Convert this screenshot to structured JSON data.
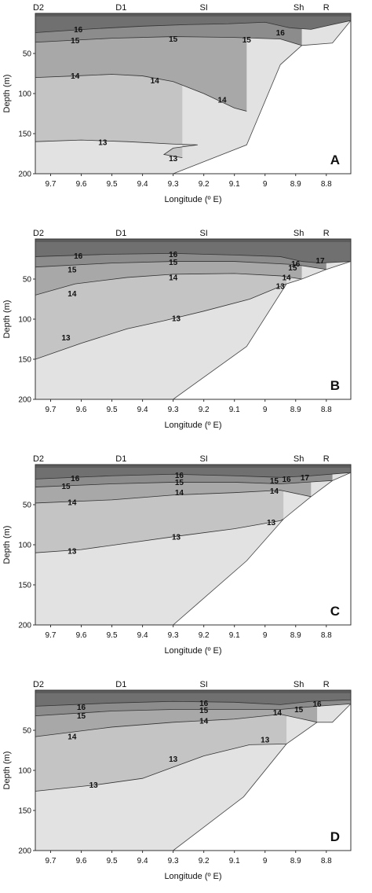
{
  "chart_data": [
    {
      "type": "heatmap",
      "panel_label": "A",
      "station_labels": [
        {
          "name": "D2",
          "x": 9.75
        },
        {
          "name": "D1",
          "x": 9.47
        },
        {
          "name": "SI",
          "x": 9.2
        },
        {
          "name": "Sh",
          "x": 8.89
        },
        {
          "name": "R",
          "x": 8.8
        }
      ],
      "xlabel": "Longitude (º E)",
      "ylabel": "Depth (m)",
      "xlim": [
        9.75,
        8.72
      ],
      "ylim": [
        0,
        200
      ],
      "xticks": [
        9.7,
        9.6,
        9.5,
        9.4,
        9.3,
        9.2,
        9.1,
        9,
        8.9,
        8.8
      ],
      "yticks": [
        50,
        100,
        150,
        200
      ],
      "bathymetry": [
        [
          9.3,
          200
        ],
        [
          9.06,
          164
        ],
        [
          8.95,
          64
        ],
        [
          8.88,
          40
        ],
        [
          8.78,
          37
        ],
        [
          8.72,
          9
        ]
      ],
      "contours": [
        {
          "level": 16,
          "label": "16",
          "points": [
            [
              9.75,
              24
            ],
            [
              9.55,
              19
            ],
            [
              9.4,
              16
            ],
            [
              9.25,
              14
            ],
            [
              9.12,
              13
            ],
            [
              9.0,
              11
            ],
            [
              8.92,
              18
            ],
            [
              8.85,
              20
            ],
            [
              8.78,
              14
            ],
            [
              8.72,
              9
            ]
          ]
        },
        {
          "level": 15,
          "label": "15",
          "points": [
            [
              9.75,
              36
            ],
            [
              9.5,
              31
            ],
            [
              9.3,
              29
            ],
            [
              9.1,
              30
            ],
            [
              8.95,
              32
            ],
            [
              8.88,
              40
            ]
          ]
        },
        {
          "level": 14,
          "label": "14",
          "points": [
            [
              9.75,
              80
            ],
            [
              9.62,
              78
            ],
            [
              9.5,
              76
            ],
            [
              9.4,
              78
            ],
            [
              9.3,
              85
            ],
            [
              9.2,
              100
            ],
            [
              9.1,
              118
            ],
            [
              9.06,
              122
            ]
          ]
        },
        {
          "level": 13,
          "label": "13",
          "points": [
            [
              9.75,
              160
            ],
            [
              9.6,
              158
            ],
            [
              9.45,
              160
            ],
            [
              9.3,
              163
            ],
            [
              9.22,
              164
            ],
            [
              9.3,
              168
            ],
            [
              9.33,
              176
            ],
            [
              9.27,
              180
            ]
          ]
        }
      ],
      "contour_labels": [
        {
          "text": "16",
          "x": 9.61,
          "y": 20
        },
        {
          "text": "16",
          "x": 8.95,
          "y": 24
        },
        {
          "text": "15",
          "x": 9.62,
          "y": 34
        },
        {
          "text": "15",
          "x": 9.3,
          "y": 32
        },
        {
          "text": "15",
          "x": 9.06,
          "y": 33
        },
        {
          "text": "14",
          "x": 9.62,
          "y": 78
        },
        {
          "text": "14",
          "x": 9.36,
          "y": 84
        },
        {
          "text": "14",
          "x": 9.14,
          "y": 108
        },
        {
          "text": "13",
          "x": 9.53,
          "y": 161
        },
        {
          "text": "13",
          "x": 9.3,
          "y": 181
        }
      ],
      "colors": {
        "t16": "#707070",
        "t15": "#8c8c8c",
        "t14": "#a8a8a8",
        "t13": "#c4c4c4",
        "t12": "#e2e2e2",
        "land": "#ffffff"
      }
    },
    {
      "type": "heatmap",
      "panel_label": "B",
      "station_labels": [
        {
          "name": "D2",
          "x": 9.75
        },
        {
          "name": "D1",
          "x": 9.47
        },
        {
          "name": "SI",
          "x": 9.2
        },
        {
          "name": "Sh",
          "x": 8.89
        },
        {
          "name": "R",
          "x": 8.8
        }
      ],
      "xlabel": "Longitude (º E)",
      "ylabel": "Depth (m)",
      "xlim": [
        9.75,
        8.72
      ],
      "ylim": [
        0,
        200
      ],
      "xticks": [
        9.7,
        9.6,
        9.5,
        9.4,
        9.3,
        9.2,
        9.1,
        9,
        8.9,
        8.8
      ],
      "yticks": [
        50,
        100,
        150,
        200
      ],
      "bathymetry": [
        [
          9.3,
          200
        ],
        [
          9.06,
          134
        ],
        [
          8.93,
          56
        ],
        [
          8.88,
          50
        ],
        [
          8.8,
          38
        ],
        [
          8.72,
          28
        ]
      ],
      "contours": [
        {
          "level": 16,
          "label": "16",
          "points": [
            [
              9.75,
              22
            ],
            [
              9.5,
              19
            ],
            [
              9.3,
              18
            ],
            [
              9.1,
              20
            ],
            [
              8.95,
              22
            ],
            [
              8.88,
              28
            ],
            [
              8.82,
              30
            ],
            [
              8.72,
              28
            ]
          ]
        },
        {
          "level": 15,
          "label": "15",
          "points": [
            [
              9.75,
              35
            ],
            [
              9.5,
              30
            ],
            [
              9.3,
              28
            ],
            [
              9.1,
              28
            ],
            [
              8.9,
              32
            ],
            [
              8.8,
              38
            ]
          ]
        },
        {
          "level": 14,
          "label": "14",
          "points": [
            [
              9.75,
              70
            ],
            [
              9.62,
              56
            ],
            [
              9.45,
              48
            ],
            [
              9.3,
              44
            ],
            [
              9.1,
              43
            ],
            [
              8.95,
              46
            ],
            [
              8.88,
              50
            ]
          ]
        },
        {
          "level": 13,
          "label": "13",
          "points": [
            [
              9.75,
              150
            ],
            [
              9.6,
              130
            ],
            [
              9.45,
              112
            ],
            [
              9.33,
              102
            ],
            [
              9.2,
              90
            ],
            [
              9.05,
              75
            ],
            [
              8.93,
              56
            ]
          ]
        }
      ],
      "contour_labels": [
        {
          "text": "16",
          "x": 9.61,
          "y": 21
        },
        {
          "text": "16",
          "x": 9.3,
          "y": 19
        },
        {
          "text": "16",
          "x": 8.9,
          "y": 31
        },
        {
          "text": "17",
          "x": 8.82,
          "y": 27
        },
        {
          "text": "15",
          "x": 9.63,
          "y": 38
        },
        {
          "text": "15",
          "x": 9.3,
          "y": 29
        },
        {
          "text": "15",
          "x": 8.91,
          "y": 36
        },
        {
          "text": "14",
          "x": 9.63,
          "y": 68
        },
        {
          "text": "14",
          "x": 9.3,
          "y": 48
        },
        {
          "text": "14",
          "x": 8.93,
          "y": 48
        },
        {
          "text": "13",
          "x": 9.65,
          "y": 123
        },
        {
          "text": "13",
          "x": 9.29,
          "y": 99
        },
        {
          "text": "13",
          "x": 8.95,
          "y": 59
        }
      ],
      "colors": {
        "t16": "#707070",
        "t15": "#8c8c8c",
        "t14": "#a8a8a8",
        "t13": "#c4c4c4",
        "t12": "#e2e2e2",
        "land": "#ffffff"
      }
    },
    {
      "type": "heatmap",
      "panel_label": "C",
      "station_labels": [
        {
          "name": "D2",
          "x": 9.75
        },
        {
          "name": "D1",
          "x": 9.47
        },
        {
          "name": "SI",
          "x": 9.2
        },
        {
          "name": "Sh",
          "x": 8.89
        },
        {
          "name": "R",
          "x": 8.8
        }
      ],
      "xlabel": "Longitude (º E)",
      "ylabel": "Depth (m)",
      "xlim": [
        9.75,
        8.72
      ],
      "ylim": [
        0,
        200
      ],
      "xticks": [
        9.7,
        9.6,
        9.5,
        9.4,
        9.3,
        9.2,
        9.1,
        9,
        8.9,
        8.8
      ],
      "yticks": [
        50,
        100,
        150,
        200
      ],
      "bathymetry": [
        [
          9.3,
          200
        ],
        [
          9.06,
          120
        ],
        [
          8.94,
          68
        ],
        [
          8.85,
          40
        ],
        [
          8.78,
          20
        ],
        [
          8.72,
          10
        ]
      ],
      "contours": [
        {
          "level": 16,
          "label": "16",
          "points": [
            [
              9.75,
              18
            ],
            [
              9.5,
              14
            ],
            [
              9.3,
              12
            ],
            [
              9.1,
              14
            ],
            [
              8.95,
              16
            ],
            [
              8.85,
              14
            ],
            [
              8.72,
              10
            ]
          ]
        },
        {
          "level": 15,
          "label": "15",
          "points": [
            [
              9.75,
              28
            ],
            [
              9.5,
              24
            ],
            [
              9.3,
              22
            ],
            [
              9.1,
              22
            ],
            [
              8.95,
              24
            ],
            [
              8.78,
              20
            ]
          ]
        },
        {
          "level": 14,
          "label": "14",
          "points": [
            [
              9.75,
              48
            ],
            [
              9.5,
              44
            ],
            [
              9.3,
              38
            ],
            [
              9.1,
              35
            ],
            [
              8.95,
              32
            ],
            [
              8.85,
              40
            ]
          ]
        },
        {
          "level": 13,
          "label": "13",
          "points": [
            [
              9.75,
              110
            ],
            [
              9.6,
              106
            ],
            [
              9.45,
              98
            ],
            [
              9.3,
              90
            ],
            [
              9.1,
              80
            ],
            [
              8.95,
              70
            ],
            [
              8.94,
              68
            ]
          ]
        }
      ],
      "contour_labels": [
        {
          "text": "16",
          "x": 9.62,
          "y": 17
        },
        {
          "text": "16",
          "x": 9.28,
          "y": 13
        },
        {
          "text": "16",
          "x": 8.93,
          "y": 18
        },
        {
          "text": "17",
          "x": 8.87,
          "y": 16
        },
        {
          "text": "15",
          "x": 9.65,
          "y": 27
        },
        {
          "text": "15",
          "x": 9.28,
          "y": 22
        },
        {
          "text": "15",
          "x": 8.97,
          "y": 20
        },
        {
          "text": "14",
          "x": 9.63,
          "y": 47
        },
        {
          "text": "14",
          "x": 9.28,
          "y": 35
        },
        {
          "text": "14",
          "x": 8.97,
          "y": 33
        },
        {
          "text": "13",
          "x": 9.63,
          "y": 108
        },
        {
          "text": "13",
          "x": 9.29,
          "y": 90
        },
        {
          "text": "13",
          "x": 8.98,
          "y": 72
        }
      ],
      "colors": {
        "t16": "#707070",
        "t15": "#8c8c8c",
        "t14": "#a8a8a8",
        "t13": "#c4c4c4",
        "t12": "#e2e2e2",
        "land": "#ffffff"
      }
    },
    {
      "type": "heatmap",
      "panel_label": "D",
      "station_labels": [
        {
          "name": "D2",
          "x": 9.75
        },
        {
          "name": "D1",
          "x": 9.47
        },
        {
          "name": "SI",
          "x": 9.2
        },
        {
          "name": "Sh",
          "x": 8.89
        },
        {
          "name": "R",
          "x": 8.8
        }
      ],
      "xlabel": "Longitude (º E)",
      "ylabel": "Depth (m)",
      "xlim": [
        9.75,
        8.72
      ],
      "ylim": [
        0,
        200
      ],
      "xticks": [
        9.7,
        9.6,
        9.5,
        9.4,
        9.3,
        9.2,
        9.1,
        9,
        8.9,
        8.8
      ],
      "yticks": [
        50,
        100,
        150,
        200
      ],
      "bathymetry": [
        [
          9.3,
          200
        ],
        [
          9.07,
          133
        ],
        [
          8.93,
          67
        ],
        [
          8.83,
          40
        ],
        [
          8.78,
          40
        ],
        [
          8.72,
          17
        ]
      ],
      "contours": [
        {
          "level": 16,
          "label": "16",
          "points": [
            [
              9.75,
              20
            ],
            [
              9.5,
              16
            ],
            [
              9.3,
              14
            ],
            [
              9.1,
              15
            ],
            [
              8.95,
              18
            ],
            [
              8.85,
              14
            ],
            [
              8.72,
              12
            ]
          ]
        },
        {
          "level": 15,
          "label": "15",
          "points": [
            [
              9.75,
              32
            ],
            [
              9.5,
              26
            ],
            [
              9.3,
              24
            ],
            [
              9.1,
              24
            ],
            [
              8.95,
              24
            ],
            [
              8.83,
              20
            ],
            [
              8.72,
              17
            ]
          ]
        },
        {
          "level": 14,
          "label": "14",
          "points": [
            [
              9.75,
              58
            ],
            [
              9.5,
              46
            ],
            [
              9.3,
              40
            ],
            [
              9.1,
              36
            ],
            [
              8.95,
              30
            ],
            [
              8.83,
              40
            ]
          ]
        },
        {
          "level": 13,
          "label": "13",
          "points": [
            [
              9.75,
              126
            ],
            [
              9.55,
              118
            ],
            [
              9.4,
              110
            ],
            [
              9.3,
              96
            ],
            [
              9.2,
              82
            ],
            [
              9.05,
              68
            ],
            [
              8.93,
              67
            ]
          ]
        }
      ],
      "contour_labels": [
        {
          "text": "16",
          "x": 9.6,
          "y": 21
        },
        {
          "text": "16",
          "x": 9.2,
          "y": 16
        },
        {
          "text": "16",
          "x": 8.83,
          "y": 17
        },
        {
          "text": "15",
          "x": 9.6,
          "y": 32
        },
        {
          "text": "15",
          "x": 9.2,
          "y": 25
        },
        {
          "text": "15",
          "x": 8.89,
          "y": 24
        },
        {
          "text": "14",
          "x": 9.63,
          "y": 58
        },
        {
          "text": "14",
          "x": 9.2,
          "y": 38
        },
        {
          "text": "14",
          "x": 8.96,
          "y": 28
        },
        {
          "text": "13",
          "x": 9.56,
          "y": 118
        },
        {
          "text": "13",
          "x": 9.3,
          "y": 86
        },
        {
          "text": "13",
          "x": 9.0,
          "y": 62
        }
      ],
      "colors": {
        "t16": "#707070",
        "t15": "#8c8c8c",
        "t14": "#a8a8a8",
        "t13": "#c4c4c4",
        "t12": "#e2e2e2",
        "land": "#ffffff"
      }
    }
  ]
}
